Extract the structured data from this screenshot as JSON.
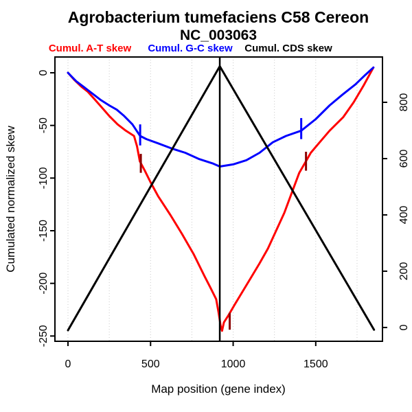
{
  "title": {
    "line1": "Agrobacterium tumefaciens C58 Cereon",
    "line2": "NC_003063"
  },
  "legend": [
    {
      "label": "Cumul. A-T skew",
      "color": "#ff0000"
    },
    {
      "label": "Cumul. G-C skew",
      "color": "#0000ff"
    },
    {
      "label": "Cumul. CDS skew",
      "color": "#000000"
    }
  ],
  "axis_titles": {
    "x": "Map position (gene index)",
    "y_left": "Cumulated normalized skew"
  },
  "colors": {
    "at_skew": "#ff0000",
    "gc_skew": "#0000ff",
    "cds_skew": "#000000",
    "curve_tick_red": "#8b0000",
    "gridline": "#c9c9c9",
    "axis": "#000000"
  },
  "chart_data": {
    "type": "line",
    "title": "Agrobacterium tumefaciens C58 Cereon NC_003063",
    "xlabel": "Map position (gene index)",
    "ylabel_left": "Cumulated normalized skew",
    "legend_position": "top",
    "grid": "dotted-vertical",
    "x_ticks": [
      0,
      500,
      1000,
      1500
    ],
    "x_gridlines": [
      0,
      250,
      500,
      750,
      1000,
      1250,
      1500,
      1750
    ],
    "y_left_ticks": [
      0,
      -50,
      -100,
      -150,
      -200,
      -250
    ],
    "y_right_ticks": [
      0,
      200,
      400,
      600,
      800
    ],
    "x_domain": [
      -79,
      1904
    ],
    "y_left_domain": [
      15,
      -255
    ],
    "y_right_domain": [
      961,
      -49
    ],
    "series": [
      {
        "name": "Cumul. A-T skew",
        "axis": "left",
        "color": "#ff0000",
        "width": 3,
        "points": [
          [
            0,
            0
          ],
          [
            40,
            -7
          ],
          [
            80,
            -13
          ],
          [
            120,
            -18
          ],
          [
            160,
            -25
          ],
          [
            200,
            -32
          ],
          [
            250,
            -41
          ],
          [
            300,
            -49
          ],
          [
            350,
            -55
          ],
          [
            400,
            -60
          ],
          [
            418,
            -70
          ],
          [
            435,
            -84
          ],
          [
            465,
            -93
          ],
          [
            500,
            -104
          ],
          [
            545,
            -117
          ],
          [
            620,
            -135
          ],
          [
            690,
            -153
          ],
          [
            760,
            -172
          ],
          [
            826,
            -193
          ],
          [
            862,
            -204
          ],
          [
            897,
            -215
          ],
          [
            912,
            -228
          ],
          [
            925,
            -241
          ],
          [
            933,
            -245
          ],
          [
            944,
            -237
          ],
          [
            969,
            -231
          ],
          [
            1010,
            -220
          ],
          [
            1060,
            -207
          ],
          [
            1110,
            -194
          ],
          [
            1160,
            -181
          ],
          [
            1210,
            -167
          ],
          [
            1260,
            -150
          ],
          [
            1310,
            -133
          ],
          [
            1355,
            -114
          ],
          [
            1400,
            -95
          ],
          [
            1441,
            -84
          ],
          [
            1470,
            -76
          ],
          [
            1513,
            -68
          ],
          [
            1584,
            -55
          ],
          [
            1667,
            -42
          ],
          [
            1730,
            -28
          ],
          [
            1790,
            -12
          ],
          [
            1849,
            5
          ]
        ]
      },
      {
        "name": "Cumul. G-C skew",
        "axis": "left",
        "color": "#0000ff",
        "width": 3,
        "points": [
          [
            0,
            0
          ],
          [
            50,
            -8
          ],
          [
            100,
            -14
          ],
          [
            150,
            -20
          ],
          [
            200,
            -26
          ],
          [
            250,
            -31
          ],
          [
            295,
            -35
          ],
          [
            340,
            -41
          ],
          [
            390,
            -49
          ],
          [
            420,
            -56
          ],
          [
            437,
            -60
          ],
          [
            475,
            -63
          ],
          [
            545,
            -67
          ],
          [
            630,
            -72
          ],
          [
            710,
            -76
          ],
          [
            795,
            -82
          ],
          [
            875,
            -86
          ],
          [
            919,
            -89
          ],
          [
            1000,
            -87
          ],
          [
            1080,
            -83
          ],
          [
            1160,
            -76
          ],
          [
            1240,
            -66
          ],
          [
            1320,
            -60
          ],
          [
            1412,
            -55
          ],
          [
            1500,
            -44
          ],
          [
            1584,
            -31
          ],
          [
            1660,
            -21
          ],
          [
            1740,
            -11
          ],
          [
            1800,
            -2
          ],
          [
            1849,
            5
          ]
        ]
      },
      {
        "name": "Cumul. CDS skew",
        "axis": "right",
        "color": "#000000",
        "width": 3,
        "points": [
          [
            0,
            -10
          ],
          [
            919,
            928
          ],
          [
            1853,
            -8
          ]
        ]
      }
    ],
    "markers": {
      "vline": {
        "x": 919,
        "color": "#000000",
        "width": 2.5
      },
      "curve_ticks": [
        {
          "x": 441,
          "y": -86,
          "half": 9,
          "color": "#8b0000"
        },
        {
          "x": 979,
          "y": -236,
          "half": 8,
          "color": "#8b0000"
        },
        {
          "x": 1441,
          "y": -84,
          "half": 9,
          "color": "#8b0000"
        },
        {
          "x": 437,
          "y": -59,
          "half": 10,
          "color": "#0000ff"
        },
        {
          "x": 1412,
          "y": -53,
          "half": 10,
          "color": "#0000ff"
        }
      ]
    }
  }
}
